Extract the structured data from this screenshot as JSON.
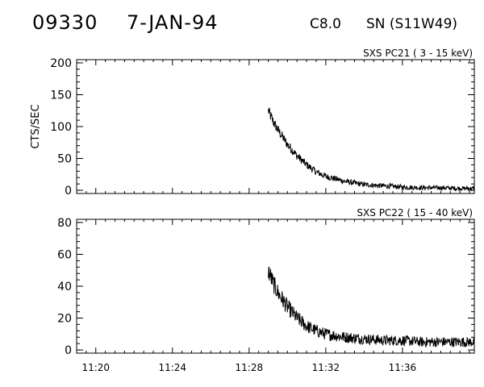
{
  "header": {
    "event_id": "09330",
    "date": "7-JAN-94",
    "flare_class": "C8.0",
    "location": "SN (S11W49)"
  },
  "chart_data": [
    {
      "type": "line",
      "title": "SXS PC21  (  3 - 15 keV)",
      "ylabel": "CTS/SEC",
      "xlim": [
        "11:19:00",
        "11:39:45"
      ],
      "ylim": [
        -5,
        205
      ],
      "y_ticks": [
        0,
        50,
        100,
        150,
        200
      ],
      "x_tick_labels": [
        "11:20",
        "11:24",
        "11:28",
        "11:32",
        "11:36"
      ],
      "x": [
        "11:29:00",
        "11:29:15",
        "11:29:30",
        "11:30:00",
        "11:30:30",
        "11:31:00",
        "11:31:30",
        "11:32:00",
        "11:33:00",
        "11:34:00",
        "11:35:00",
        "11:36:00",
        "11:37:00",
        "11:38:00",
        "11:39:00",
        "11:39:45"
      ],
      "values": [
        125,
        108,
        95,
        72,
        54,
        40,
        29,
        22,
        14,
        9,
        7,
        5,
        4,
        4,
        3,
        3
      ],
      "noise": 7
    },
    {
      "type": "line",
      "title": "SXS PC22  ( 15 - 40 keV)",
      "ylabel": "",
      "xlim": [
        "11:19:00",
        "11:39:45"
      ],
      "ylim": [
        -2,
        82
      ],
      "y_ticks": [
        0,
        20,
        40,
        60,
        80
      ],
      "x_tick_labels": [
        "11:20",
        "11:24",
        "11:28",
        "11:32",
        "11:36"
      ],
      "x": [
        "11:29:00",
        "11:29:15",
        "11:29:30",
        "11:30:00",
        "11:30:30",
        "11:31:00",
        "11:31:30",
        "11:32:00",
        "11:33:00",
        "11:34:00",
        "11:35:00",
        "11:36:00",
        "11:37:00",
        "11:38:00",
        "11:39:00",
        "11:39:45"
      ],
      "values": [
        50,
        42,
        36,
        27,
        20,
        15,
        12,
        10,
        8,
        7,
        6,
        6,
        5,
        5,
        5,
        5
      ],
      "noise": 5
    }
  ]
}
